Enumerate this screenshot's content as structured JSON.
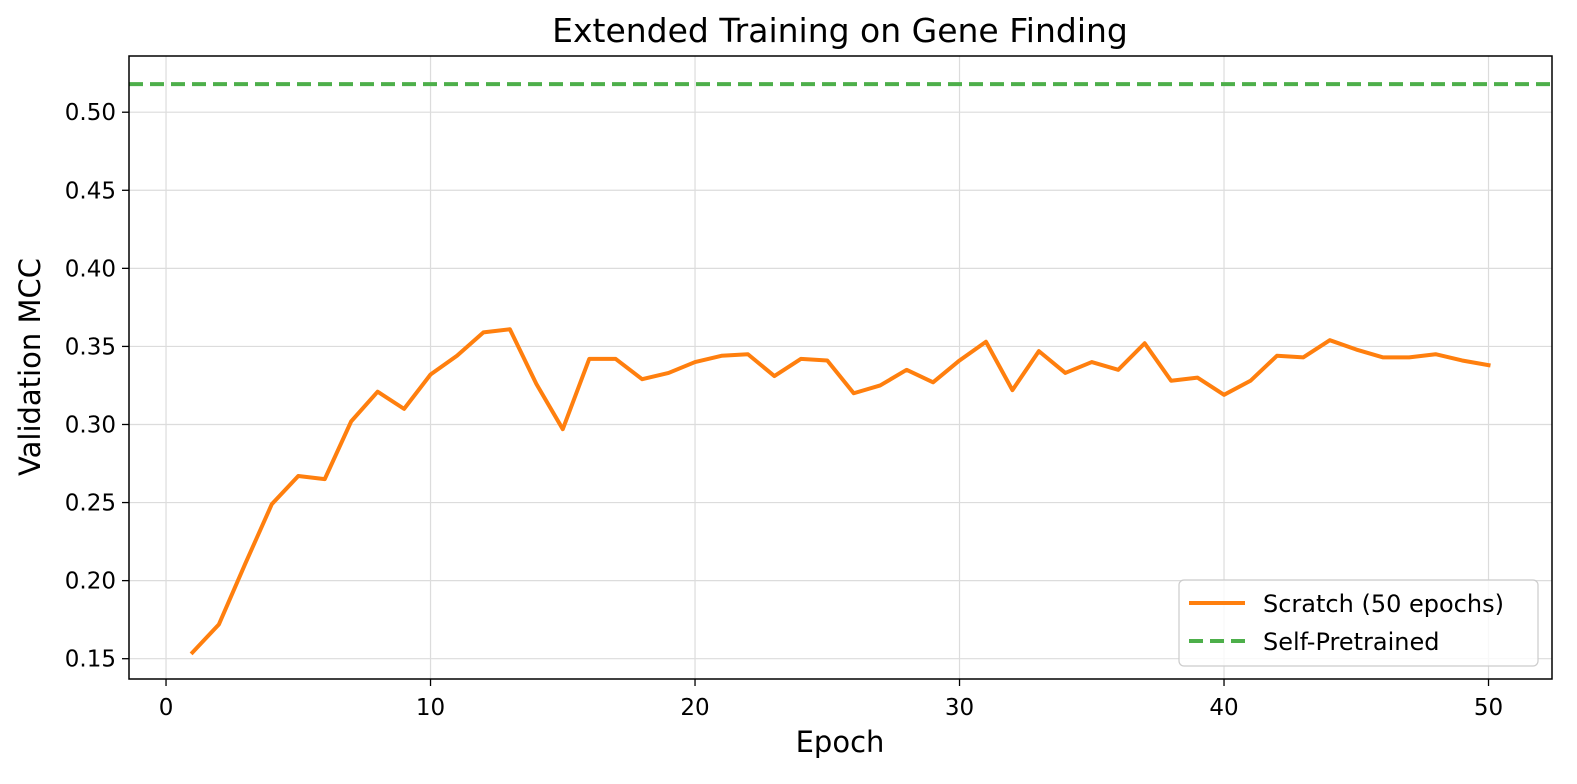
{
  "chart_data": {
    "type": "line",
    "title": "Extended Training on Gene Finding",
    "xlabel": "Epoch",
    "ylabel": "Validation MCC",
    "xlim": [
      -1.4,
      52.4
    ],
    "ylim": [
      0.137,
      0.536
    ],
    "xticks": [
      0,
      10,
      20,
      30,
      40,
      50
    ],
    "xtick_labels": [
      "0",
      "10",
      "20",
      "30",
      "40",
      "50"
    ],
    "yticks": [
      0.15,
      0.2,
      0.25,
      0.3,
      0.35,
      0.4,
      0.45,
      0.5
    ],
    "ytick_labels": [
      "0.15",
      "0.20",
      "0.25",
      "0.30",
      "0.35",
      "0.40",
      "0.45",
      "0.50"
    ],
    "grid": true,
    "legend_position": "lower-right",
    "series": [
      {
        "name": "Scratch (50 epochs)",
        "color": "#ff7f0e",
        "linestyle": "solid",
        "x": [
          1,
          2,
          3,
          4,
          5,
          6,
          7,
          8,
          9,
          10,
          11,
          12,
          13,
          14,
          15,
          16,
          17,
          18,
          19,
          20,
          21,
          22,
          23,
          24,
          25,
          26,
          27,
          28,
          29,
          30,
          31,
          32,
          33,
          34,
          35,
          36,
          37,
          38,
          39,
          40,
          41,
          42,
          43,
          44,
          45,
          46,
          47,
          48,
          49,
          50
        ],
        "values": [
          0.154,
          0.172,
          0.211,
          0.249,
          0.267,
          0.265,
          0.302,
          0.321,
          0.31,
          0.332,
          0.344,
          0.359,
          0.361,
          0.326,
          0.297,
          0.342,
          0.342,
          0.329,
          0.333,
          0.34,
          0.344,
          0.345,
          0.331,
          0.342,
          0.341,
          0.32,
          0.325,
          0.335,
          0.327,
          0.341,
          0.353,
          0.322,
          0.347,
          0.333,
          0.34,
          0.335,
          0.352,
          0.328,
          0.33,
          0.319,
          0.328,
          0.344,
          0.343,
          0.354,
          0.348,
          0.343,
          0.343,
          0.345,
          0.341,
          0.338
        ]
      },
      {
        "name": "Self-Pretrained",
        "color": "#4daf4a",
        "linestyle": "dashed",
        "constant": 0.518
      }
    ]
  }
}
